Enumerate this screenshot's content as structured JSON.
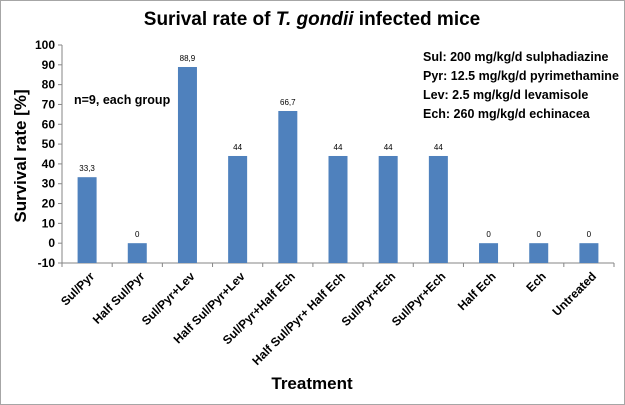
{
  "chart_data": {
    "type": "bar",
    "title_parts": [
      {
        "text": "Surival rate of ",
        "italic": false
      },
      {
        "text": "T. gondii",
        "italic": true
      },
      {
        "text": " infected mice",
        "italic": false
      }
    ],
    "xlabel": "Treatment",
    "ylabel": "Survival rate [%]",
    "ylim": [
      -10,
      100
    ],
    "yticks": [
      -10,
      0,
      10,
      20,
      30,
      40,
      50,
      60,
      70,
      80,
      90,
      100
    ],
    "grid": false,
    "bar_color": "#4f81bd",
    "categories": [
      "Sul/Pyr",
      "Half Sul/Pyr",
      "Sul/Pyr+Lev",
      "Half Sul/Pyr+Lev",
      "Sul/Pyr+Half Ech",
      "Half Sul/Pyr+ Half Ech",
      "Sul/Pyr+Ech",
      "Sul/Pyr+Ech",
      "Half Ech",
      "Ech",
      "Untreated"
    ],
    "values": [
      33.3,
      0,
      88.9,
      44,
      66.7,
      44,
      44,
      44,
      0,
      0,
      0
    ],
    "data_labels": [
      "33,3",
      "0",
      "88,9",
      "44",
      "66,7",
      "44",
      "44",
      "44",
      "0",
      "0",
      "0"
    ],
    "annotations": {
      "group_note": "n=9, each group",
      "legend_lines": [
        "Sul: 200 mg/kg/d sulphadiazine",
        "Pyr: 12.5 mg/kg/d pyrimethamine",
        "Lev: 2.5 mg/kg/d levamisole",
        "Ech: 260 mg/kg/d echinacea"
      ],
      "legend_position": "top-right",
      "group_note_position": "top-left"
    }
  }
}
